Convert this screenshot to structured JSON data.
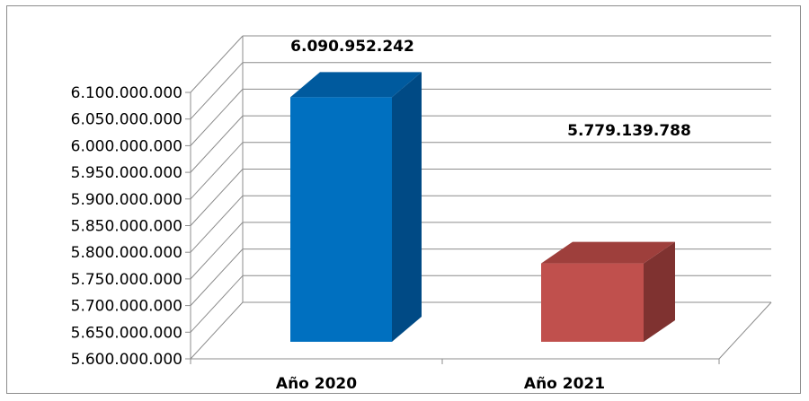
{
  "chart_data": {
    "type": "bar",
    "style": "3d-column",
    "categories": [
      "Año 2020",
      "Año 2021"
    ],
    "values": [
      6090952242,
      5779139788
    ],
    "data_labels": [
      "6.090.952.242",
      "5.779.139.788"
    ],
    "ylim": [
      5600000000,
      6100000000
    ],
    "yticks": [
      5600000000,
      5650000000,
      5700000000,
      5750000000,
      5800000000,
      5850000000,
      5900000000,
      5950000000,
      6000000000,
      6050000000,
      6100000000
    ],
    "ytick_labels": [
      "5.600.000.000",
      "5.650.000.000",
      "5.700.000.000",
      "5.750.000.000",
      "5.800.000.000",
      "5.850.000.000",
      "5.900.000.000",
      "5.950.000.000",
      "6.000.000.000",
      "6.050.000.000",
      "6.100.000.000"
    ],
    "grid": true,
    "colors": {
      "series": [
        "#0070c0",
        "#c0504d"
      ],
      "series_side": [
        "#004a85",
        "#7f3230"
      ],
      "series_top": [
        "#005a9e",
        "#9e3f3c"
      ],
      "grid": "#8c8c8c"
    }
  }
}
